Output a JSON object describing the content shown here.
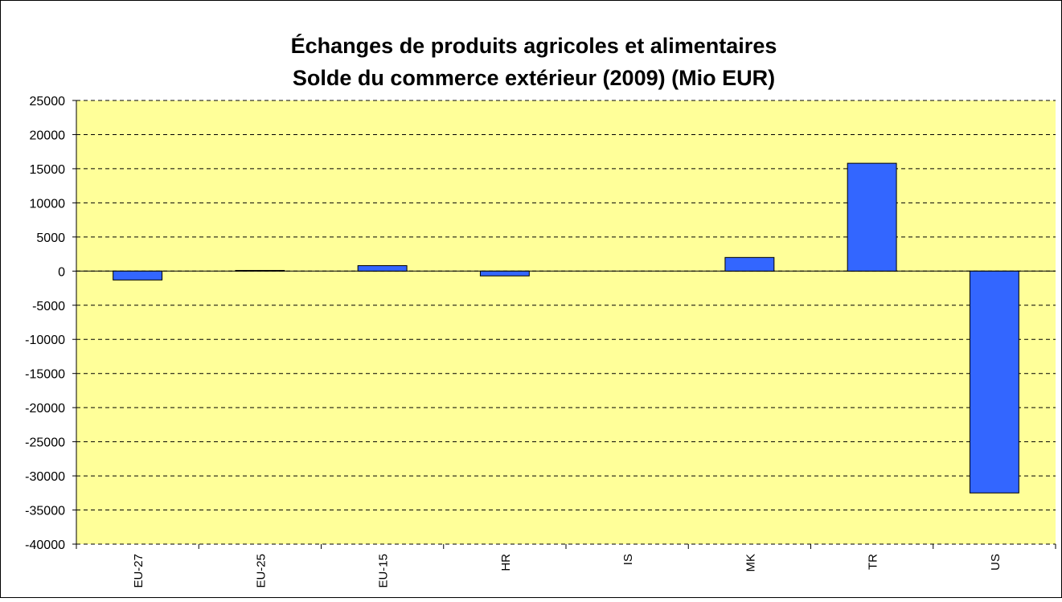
{
  "chart_data": {
    "type": "bar",
    "title": "Échanges de produits agricoles et alimentaires",
    "subtitle": "Solde du commerce extérieur (2009) (Mio EUR)",
    "categories": [
      "EU-27",
      "EU-25",
      "EU-15",
      "HR",
      "IS",
      "MK",
      "TR",
      "US"
    ],
    "values": [
      -1300,
      100,
      800,
      -700,
      0,
      2000,
      15800,
      -32500
    ],
    "color": "#3366ff",
    "ylim": [
      -40000,
      25000
    ],
    "yticks": [
      -40000,
      -35000,
      -30000,
      -25000,
      -20000,
      -15000,
      -10000,
      -5000,
      0,
      5000,
      10000,
      15000,
      20000,
      25000
    ],
    "grid": true
  }
}
